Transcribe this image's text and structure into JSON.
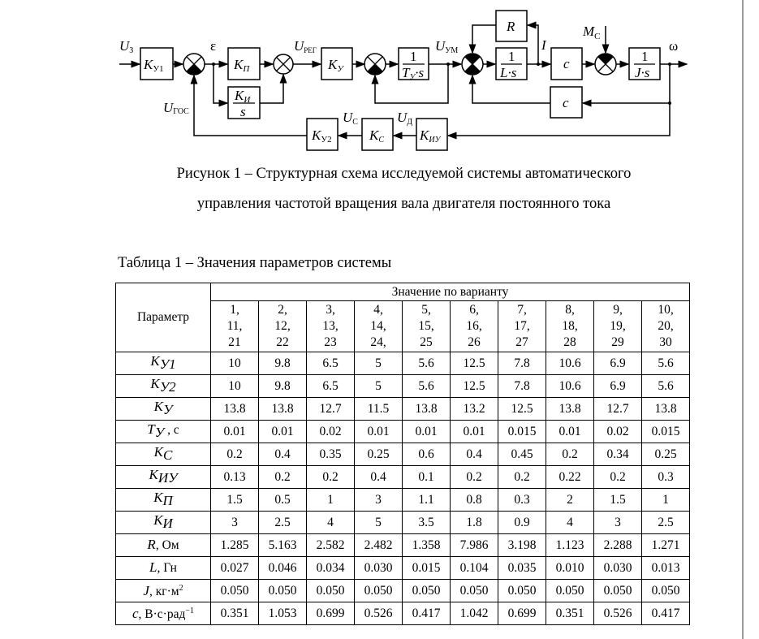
{
  "diagram": {
    "signals": {
      "u_z": {
        "sym": "U",
        "sub": "З"
      },
      "eps": "ε",
      "u_reg": {
        "sym": "U",
        "sub": "РЕГ"
      },
      "u_um": {
        "sym": "U",
        "sub": "УМ"
      },
      "current": "I",
      "m_c": {
        "sym": "M",
        "sub": "С"
      },
      "omega": "ω",
      "u_gos": {
        "sym": "U",
        "sub": "ГОС"
      },
      "u_c": {
        "sym": "U",
        "sub": "С"
      },
      "u_d": {
        "sym": "U",
        "sub": "Д"
      }
    },
    "blocks": {
      "ku1": {
        "sym": "K",
        "sub": "У1"
      },
      "kp": {
        "sym": "K",
        "sub": "П"
      },
      "ki": {
        "sym": "K",
        "sub": "И",
        "den": "s"
      },
      "ky": {
        "sym": "K",
        "sub": "У"
      },
      "ty": {
        "num": "1",
        "den": "T",
        "den_sub": "У",
        "den_tail": "·s"
      },
      "r": "R",
      "ls": {
        "num": "1",
        "den": "L·s"
      },
      "c1": "c",
      "js": {
        "num": "1",
        "den": "J·s"
      },
      "c2": "c",
      "ku2": {
        "sym": "K",
        "sub": "У2"
      },
      "kc": {
        "sym": "K",
        "sub": "С"
      },
      "kiu": {
        "sym": "K",
        "sub": "ИУ"
      }
    }
  },
  "caption": {
    "line1": "Рисунок 1 – Структурная схема исследуемой системы автоматического",
    "line2": "управления частотой вращения вала двигателя постоянного тока"
  },
  "table": {
    "title": "Таблица 1 – Значения параметров системы",
    "param_header": "Параметр",
    "value_header": "Значение по варианту",
    "variants": [
      [
        "1,",
        "11,",
        "21"
      ],
      [
        "2,",
        "12,",
        "22"
      ],
      [
        "3,",
        "13,",
        "23"
      ],
      [
        "4,",
        "14,",
        "24,"
      ],
      [
        "5,",
        "15,",
        "25"
      ],
      [
        "6,",
        "16,",
        "26"
      ],
      [
        "7,",
        "17,",
        "27"
      ],
      [
        "8,",
        "18,",
        "28"
      ],
      [
        "9,",
        "19,",
        "29"
      ],
      [
        "10,",
        "20,",
        "30"
      ]
    ],
    "rows": [
      {
        "param": {
          "sym": "K",
          "sub": "У1"
        },
        "values": [
          "10",
          "9.8",
          "6.5",
          "5",
          "5.6",
          "12.5",
          "7.8",
          "10.6",
          "6.9",
          "5.6"
        ]
      },
      {
        "param": {
          "sym": "K",
          "sub": "У2"
        },
        "values": [
          "10",
          "9.8",
          "6.5",
          "5",
          "5.6",
          "12.5",
          "7.8",
          "10.6",
          "6.9",
          "5.6"
        ]
      },
      {
        "param": {
          "sym": "K",
          "sub": "У"
        },
        "values": [
          "13.8",
          "13.8",
          "12.7",
          "11.5",
          "13.8",
          "13.2",
          "12.5",
          "13.8",
          "12.7",
          "13.8"
        ]
      },
      {
        "param": {
          "sym": "T",
          "sub": "У",
          "unit": " , с"
        },
        "values": [
          "0.01",
          "0.01",
          "0.02",
          "0.01",
          "0.01",
          "0.01",
          "0.015",
          "0.01",
          "0.02",
          "0.015"
        ]
      },
      {
        "param": {
          "sym": "K",
          "sub": "С"
        },
        "values": [
          "0.2",
          "0.4",
          "0.35",
          "0.25",
          "0.6",
          "0.4",
          "0.45",
          "0.2",
          "0.34",
          "0.25"
        ]
      },
      {
        "param": {
          "sym": "K",
          "sub": "ИУ"
        },
        "values": [
          "0.13",
          "0.2",
          "0.2",
          "0.4",
          "0.1",
          "0.2",
          "0.2",
          "0.22",
          "0.2",
          "0.3"
        ]
      },
      {
        "param": {
          "sym": "K",
          "sub": "П"
        },
        "values": [
          "1.5",
          "0.5",
          "1",
          "3",
          "1.1",
          "0.8",
          "0.3",
          "2",
          "1.5",
          "1"
        ]
      },
      {
        "param": {
          "sym": "K",
          "sub": "И"
        },
        "values": [
          "3",
          "2.5",
          "4",
          "5",
          "3.5",
          "1.8",
          "0.9",
          "4",
          "3",
          "2.5"
        ]
      },
      {
        "param": {
          "sym": "R",
          "unit": ", Ом"
        },
        "values": [
          "1.285",
          "5.163",
          "2.582",
          "2.482",
          "1.358",
          "7.986",
          "3.198",
          "1.123",
          "2.288",
          "1.271"
        ]
      },
      {
        "param": {
          "sym": "L",
          "unit": ", Гн"
        },
        "values": [
          "0.027",
          "0.046",
          "0.034",
          "0.030",
          "0.015",
          "0.104",
          "0.035",
          "0.010",
          "0.030",
          "0.013"
        ]
      },
      {
        "param": {
          "sym": "J",
          "unit": ", кг·м",
          "sup": "2"
        },
        "values": [
          "0.050",
          "0.050",
          "0.050",
          "0.050",
          "0.050",
          "0.050",
          "0.050",
          "0.050",
          "0.050",
          "0.050"
        ]
      },
      {
        "param": {
          "sym": "c",
          "unit": ", В·с·рад",
          "sup": "−1"
        },
        "values": [
          "0.351",
          "1.053",
          "0.699",
          "0.526",
          "0.417",
          "1.042",
          "0.699",
          "0.351",
          "0.526",
          "0.417"
        ]
      }
    ]
  }
}
